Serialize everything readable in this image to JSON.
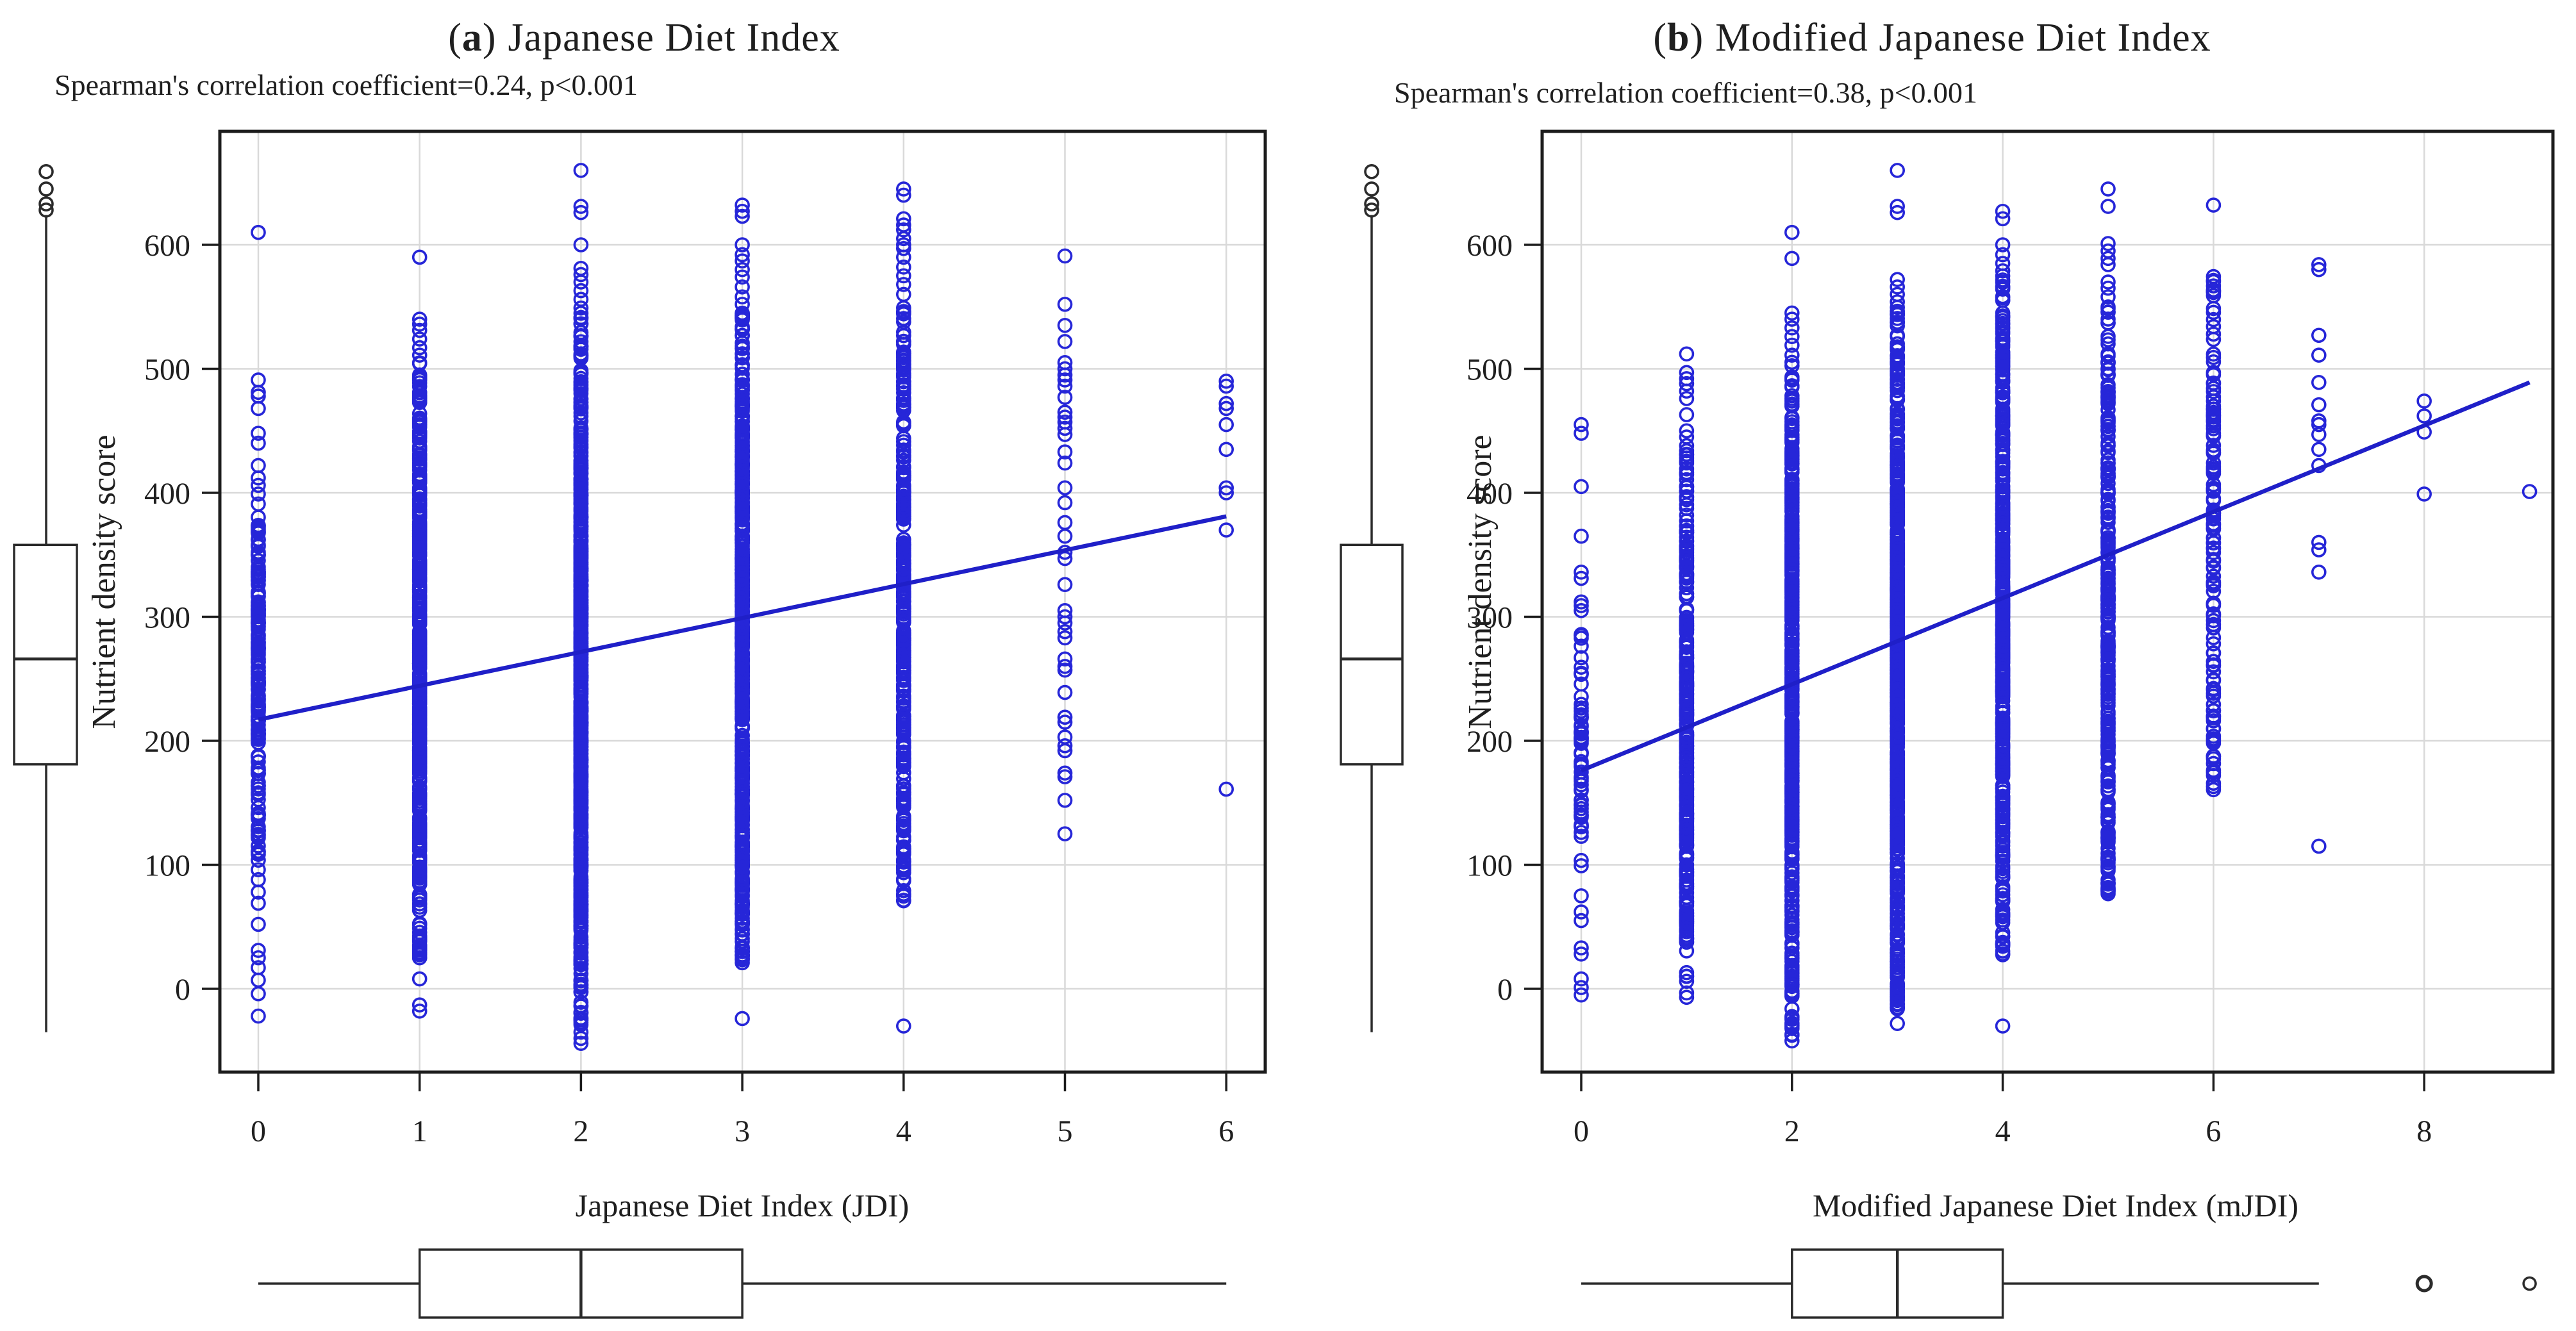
{
  "figure": {
    "kind": "two-panel scatter figure with marginal boxplots",
    "background": "#ffffff"
  },
  "colors": {
    "point_blue": "#2626d8",
    "line_blue": "#1f1fc8",
    "grid_gray": "#d9d9d9",
    "frame_black": "#1c1c1c",
    "boxplot_black": "#2b2b2b",
    "text_black": "#1f1f1f"
  },
  "chart_data": [
    {
      "type": "scatter",
      "panel": "a",
      "title_letter": "a",
      "title": "Japanese Diet Index",
      "subtitle": "Spearman's correlation coefficient=0.24, p<0.001",
      "spearman_rho": 0.24,
      "p_value": "p<0.001",
      "xlabel": "Japanese Diet Index (JDI)",
      "ylabel": "Nutrient density score",
      "x_ticks": [
        0,
        1,
        2,
        3,
        4,
        5,
        6
      ],
      "y_ticks": [
        0,
        100,
        200,
        300,
        400,
        500,
        600
      ],
      "x_grid_step": 1,
      "xlim": [
        -0.24,
        6.24
      ],
      "ylim": [
        -67,
        691
      ],
      "grid": true,
      "legend": "none",
      "regression_line": {
        "x": [
          0,
          6
        ],
        "y": [
          217,
          381
        ]
      },
      "columns": [
        {
          "x": 0,
          "dense_min": 103,
          "dense_max": 386,
          "dense_count": 170,
          "points": [
            610,
            491,
            481,
            478,
            468,
            448,
            440,
            422,
            412,
            406,
            399,
            391,
            96,
            88,
            78,
            69,
            52,
            31,
            25,
            17,
            7,
            -4,
            -22
          ]
        },
        {
          "x": 1,
          "dense_min": 22,
          "dense_max": 508,
          "dense_count": 430,
          "points": [
            590,
            540,
            536,
            531,
            524,
            517,
            511,
            8,
            -13,
            -18
          ]
        },
        {
          "x": 2,
          "dense_min": -30,
          "dense_max": 545,
          "dense_count": 650,
          "points": [
            660,
            631,
            626,
            600,
            581,
            576,
            570,
            563,
            556,
            549,
            -35,
            -40,
            -44
          ]
        },
        {
          "x": 3,
          "dense_min": 18,
          "dense_max": 548,
          "dense_count": 600,
          "points": [
            632,
            627,
            623,
            600,
            592,
            587,
            580,
            574,
            566,
            558,
            552,
            80,
            61,
            44,
            30,
            -24
          ]
        },
        {
          "x": 4,
          "dense_min": 70,
          "dense_max": 556,
          "dense_count": 330,
          "points": [
            645,
            640,
            621,
            616,
            612,
            605,
            600,
            597,
            590,
            582,
            575,
            568,
            560,
            -30
          ]
        },
        {
          "x": 5,
          "dense_min": null,
          "dense_max": null,
          "dense_count": 0,
          "points": [
            591,
            552,
            535,
            522,
            505,
            500,
            495,
            491,
            486,
            477,
            465,
            461,
            457,
            452,
            447,
            433,
            424,
            404,
            392,
            376,
            365,
            352,
            347,
            326,
            305,
            300,
            295,
            288,
            283,
            266,
            260,
            257,
            239,
            219,
            215,
            203,
            196,
            192,
            174,
            171,
            152,
            125
          ]
        },
        {
          "x": 6,
          "dense_min": null,
          "dense_max": null,
          "dense_count": 0,
          "points": [
            490,
            486,
            472,
            468,
            455,
            435,
            404,
            400,
            370,
            161
          ]
        }
      ],
      "y_marginal_boxplot": {
        "whisker_low": -35,
        "q1": 181,
        "median": 266,
        "q3": 358,
        "whisker_high": 624,
        "outliers": [
          628,
          633,
          645,
          659
        ]
      },
      "x_marginal_boxplot": {
        "whisker_low": 0,
        "q1": 1,
        "median": 2,
        "q3": 3,
        "whisker_high": 6,
        "outliers": []
      }
    },
    {
      "type": "scatter",
      "panel": "b",
      "title_letter": "b",
      "title": "Modified Japanese Diet Index",
      "subtitle": "Spearman's correlation coefficient=0.38, p<0.001",
      "spearman_rho": 0.38,
      "p_value": "p<0.001",
      "xlabel": "Modified Japanese Diet Index (mJDI)",
      "ylabel": "Nutrient density score",
      "x_ticks": [
        0,
        2,
        4,
        6,
        8
      ],
      "y_ticks": [
        0,
        100,
        200,
        300,
        400,
        500,
        600
      ],
      "x_grid_step": 2,
      "xlim": [
        -0.37,
        9.22
      ],
      "ylim": [
        -67,
        691
      ],
      "grid": true,
      "legend": "none",
      "regression_line": {
        "x": [
          0,
          9
        ],
        "y": [
          176,
          489
        ]
      },
      "columns": [
        {
          "x": 0,
          "dense_min": 95,
          "dense_max": 300,
          "dense_count": 60,
          "points": [
            455,
            448,
            405,
            365,
            336,
            331,
            312,
            309,
            305,
            75,
            62,
            55,
            33,
            28,
            8,
            1,
            -5
          ]
        },
        {
          "x": 1,
          "dense_min": -14,
          "dense_max": 434,
          "dense_count": 300,
          "points": [
            512,
            497,
            492,
            488,
            482,
            476,
            463,
            450,
            445,
            438
          ]
        },
        {
          "x": 2,
          "dense_min": -38,
          "dense_max": 508,
          "dense_count": 500,
          "points": [
            610,
            589,
            545,
            540,
            533,
            526,
            519,
            511,
            -42
          ]
        },
        {
          "x": 3,
          "dense_min": -22,
          "dense_max": 550,
          "dense_count": 650,
          "points": [
            660,
            631,
            626,
            572,
            566,
            560,
            554,
            -28
          ]
        },
        {
          "x": 4,
          "dense_min": 18,
          "dense_max": 576,
          "dense_count": 500,
          "points": [
            627,
            621,
            600,
            592,
            585,
            579,
            -30
          ]
        },
        {
          "x": 5,
          "dense_min": 74,
          "dense_max": 553,
          "dense_count": 300,
          "points": [
            645,
            631,
            601,
            595,
            589,
            584,
            570,
            565,
            558
          ]
        },
        {
          "x": 6,
          "dense_min": 145,
          "dense_max": 580,
          "dense_count": 130,
          "points": [
            632
          ]
        },
        {
          "x": 7,
          "dense_min": null,
          "dense_max": null,
          "dense_count": 0,
          "points": [
            584,
            580,
            527,
            511,
            489,
            471,
            458,
            455,
            447,
            435,
            422,
            360,
            354,
            336,
            115
          ]
        },
        {
          "x": 8,
          "dense_min": null,
          "dense_max": null,
          "dense_count": 0,
          "points": [
            474,
            462,
            449,
            399
          ]
        },
        {
          "x": 9,
          "dense_min": null,
          "dense_max": null,
          "dense_count": 0,
          "points": [
            401
          ]
        }
      ],
      "y_marginal_boxplot": {
        "whisker_low": -35,
        "q1": 181,
        "median": 266,
        "q3": 358,
        "whisker_high": 624,
        "outliers": [
          628,
          633,
          645,
          659
        ]
      },
      "x_marginal_boxplot": {
        "whisker_low": 0,
        "q1": 2,
        "median": 3,
        "q3": 4,
        "whisker_high": 7,
        "outliers": [
          8,
          9
        ]
      }
    }
  ]
}
